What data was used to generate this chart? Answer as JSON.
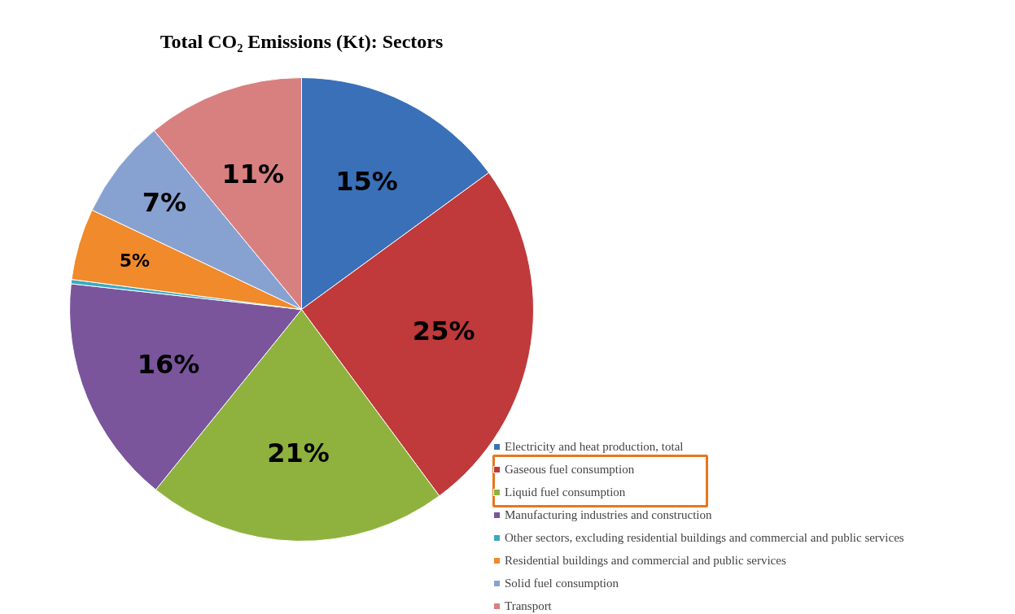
{
  "chart_data": {
    "type": "pie",
    "title": "Total CO₂ Emissions (Kt): Sectors",
    "categories": [
      "Electricity and heat production, total",
      "Gaseous fuel consumption",
      "Liquid fuel consumption",
      "Manufacturing industries and construction",
      "Other sectors, excluding residential buildings and commercial and public services",
      "Residential buildings and commercial and public services",
      "Solid fuel consumption",
      "Transport"
    ],
    "values": [
      15,
      25,
      21,
      16,
      0.3,
      5,
      7,
      11
    ],
    "value_labels": [
      "15%",
      "25%",
      "21%",
      "16%",
      null,
      "5%",
      "7%",
      "11%"
    ],
    "colors": [
      "#3a70b8",
      "#c0393b",
      "#8fb23e",
      "#7a559c",
      "#3ba9c4",
      "#f08a2a",
      "#87a2d0",
      "#d88080"
    ],
    "legend": "bottom right"
  }
}
